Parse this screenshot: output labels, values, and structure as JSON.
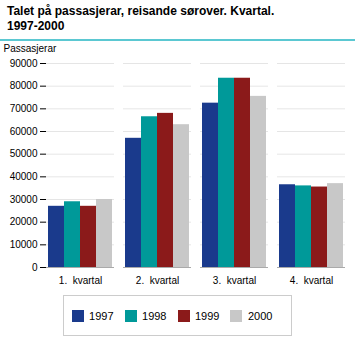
{
  "chart_data": {
    "type": "bar",
    "title": "Talet på passasjerar, reisande sørover. Kvartal.",
    "subtitle": "1997-2000",
    "y_label": "Passasjerar",
    "categories": [
      "1.  kvartal",
      "2.  kvartal",
      "3.  kvartal",
      "4.  kvartal"
    ],
    "series": [
      {
        "name": "1997",
        "color": "#1a3a8c",
        "values": [
          27000,
          57000,
          72500,
          36500
        ]
      },
      {
        "name": "1998",
        "color": "#009999",
        "values": [
          29000,
          66500,
          83500,
          36000
        ]
      },
      {
        "name": "1999",
        "color": "#8b1a1a",
        "values": [
          27000,
          68000,
          83500,
          35500
        ]
      },
      {
        "name": "2000",
        "color": "#c8c8c8",
        "values": [
          30000,
          63000,
          75500,
          37000
        ]
      }
    ],
    "ylim": [
      0,
      90000
    ],
    "yticks": [
      0,
      10000,
      20000,
      30000,
      40000,
      50000,
      60000,
      70000,
      80000,
      90000
    ],
    "grid": true,
    "legend": "bottom"
  }
}
